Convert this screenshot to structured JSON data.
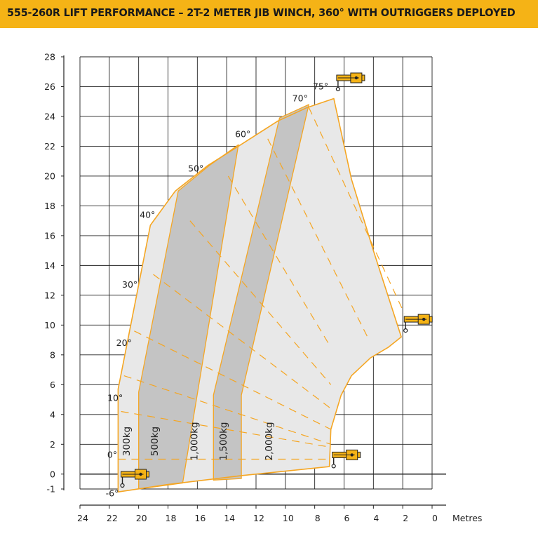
{
  "title": "555-260R LIFT PERFORMANCE – 2T-2 METER JIB WINCH, 360° WITH OUTRIGGERS DEPLOYED",
  "colors": {
    "title_bar": "#f5b316",
    "envelope_fill": "#e8e8e8",
    "band_fill": "#c4c4c4",
    "boundary": "#f5a623",
    "grid": "#222222"
  },
  "chart_data": {
    "type": "load-chart",
    "title": "555-260R LIFT PERFORMANCE – 2T-2 METER JIB WINCH, 360° WITH OUTRIGGERS DEPLOYED",
    "xlabel": "Metres",
    "ylabel": "",
    "x_direction": "reversed",
    "xlim": [
      24,
      0
    ],
    "ylim": [
      -1,
      28
    ],
    "x_ticks": [
      24,
      22,
      20,
      18,
      16,
      14,
      12,
      10,
      8,
      6,
      4,
      2,
      0
    ],
    "y_ticks": [
      28,
      26,
      24,
      22,
      20,
      18,
      16,
      14,
      12,
      10,
      8,
      6,
      4,
      2,
      0,
      -1
    ],
    "grid": true,
    "envelope": [
      [
        21.4,
        -1.2
      ],
      [
        21.4,
        5.7
      ],
      [
        19.2,
        16.7
      ],
      [
        17.5,
        19.0
      ],
      [
        15.3,
        20.7
      ],
      [
        13.2,
        22.0
      ],
      [
        10.5,
        23.7
      ],
      [
        8.5,
        24.6
      ],
      [
        6.7,
        25.2
      ],
      [
        5.5,
        19.8
      ],
      [
        4.0,
        15.0
      ],
      [
        2.1,
        9.2
      ],
      [
        3.0,
        8.5
      ],
      [
        4.2,
        7.8
      ],
      [
        5.5,
        6.6
      ],
      [
        6.2,
        5.3
      ],
      [
        6.9,
        3.0
      ],
      [
        7.0,
        0.5
      ],
      [
        13.0,
        -0.1
      ],
      [
        18.0,
        -0.7
      ]
    ],
    "bands": [
      {
        "points": [
          [
            20.0,
            5.5
          ],
          [
            17.3,
            19.0
          ],
          [
            15.2,
            20.7
          ],
          [
            13.2,
            22.1
          ],
          [
            17.0,
            -0.6
          ],
          [
            20.0,
            -1.0
          ]
        ]
      },
      {
        "points": [
          [
            14.9,
            5.3
          ],
          [
            10.4,
            23.9
          ],
          [
            8.4,
            24.8
          ],
          [
            13.0,
            5.3
          ],
          [
            13.0,
            -0.3
          ],
          [
            14.9,
            -0.4
          ]
        ]
      }
    ],
    "angle_lines": [
      {
        "label": "75°",
        "points": [
          [
            8.4,
            24.6
          ],
          [
            1.9,
            10.8
          ]
        ]
      },
      {
        "label": "70°",
        "points": [
          [
            11.2,
            22.5
          ],
          [
            4.3,
            9.0
          ]
        ]
      },
      {
        "label": "60°",
        "points": [
          [
            13.9,
            20.0
          ],
          [
            6.9,
            8.5
          ]
        ]
      },
      {
        "label": "50°",
        "points": [
          [
            16.5,
            17.0
          ],
          [
            6.9,
            6.0
          ]
        ]
      },
      {
        "label": "40°",
        "points": [
          [
            19.0,
            13.4
          ],
          [
            6.9,
            4.4
          ]
        ]
      },
      {
        "label": "30°",
        "points": [
          [
            20.3,
            9.6
          ],
          [
            6.9,
            3.0
          ]
        ]
      },
      {
        "label": "20°",
        "points": [
          [
            21.0,
            6.6
          ],
          [
            6.9,
            2.0
          ]
        ]
      },
      {
        "label": "10°",
        "points": [
          [
            21.2,
            4.2
          ],
          [
            6.9,
            1.8
          ]
        ]
      },
      {
        "label": "0°",
        "points": [
          [
            21.4,
            1.0
          ],
          [
            6.9,
            1.0
          ]
        ]
      }
    ],
    "angle_labels": [
      {
        "text": "75°",
        "x": 7.6,
        "y": 25.8
      },
      {
        "text": "70°",
        "x": 9.0,
        "y": 25.0
      },
      {
        "text": "60°",
        "x": 12.9,
        "y": 22.6
      },
      {
        "text": "50°",
        "x": 16.1,
        "y": 20.3
      },
      {
        "text": "40°",
        "x": 19.4,
        "y": 17.2
      },
      {
        "text": "30°",
        "x": 20.6,
        "y": 12.5
      },
      {
        "text": "20°",
        "x": 21.0,
        "y": 8.6
      },
      {
        "text": "10°",
        "x": 21.6,
        "y": 4.9
      },
      {
        "text": "0°",
        "x": 21.8,
        "y": 1.1
      },
      {
        "text": "-6°",
        "x": 21.8,
        "y": -1.5
      }
    ],
    "load_labels": [
      {
        "text": "300kg",
        "x": 20.6,
        "y": 2.2
      },
      {
        "text": "500kg",
        "x": 18.7,
        "y": 2.2
      },
      {
        "text": "1,000kg",
        "x": 16.0,
        "y": 2.2
      },
      {
        "text": "1,500kg",
        "x": 14.0,
        "y": 2.2
      },
      {
        "text": "2,000kg",
        "x": 10.9,
        "y": 2.2
      }
    ],
    "machine_icons": [
      {
        "name": "jib-icon-top",
        "x": 6.6,
        "y": 26.4
      },
      {
        "name": "jib-icon-right",
        "x": 2.0,
        "y": 10.2
      },
      {
        "name": "jib-icon-bottom-right",
        "x": 6.9,
        "y": 1.1
      },
      {
        "name": "jib-icon-bottom-left",
        "x": 21.3,
        "y": -0.2
      }
    ]
  }
}
